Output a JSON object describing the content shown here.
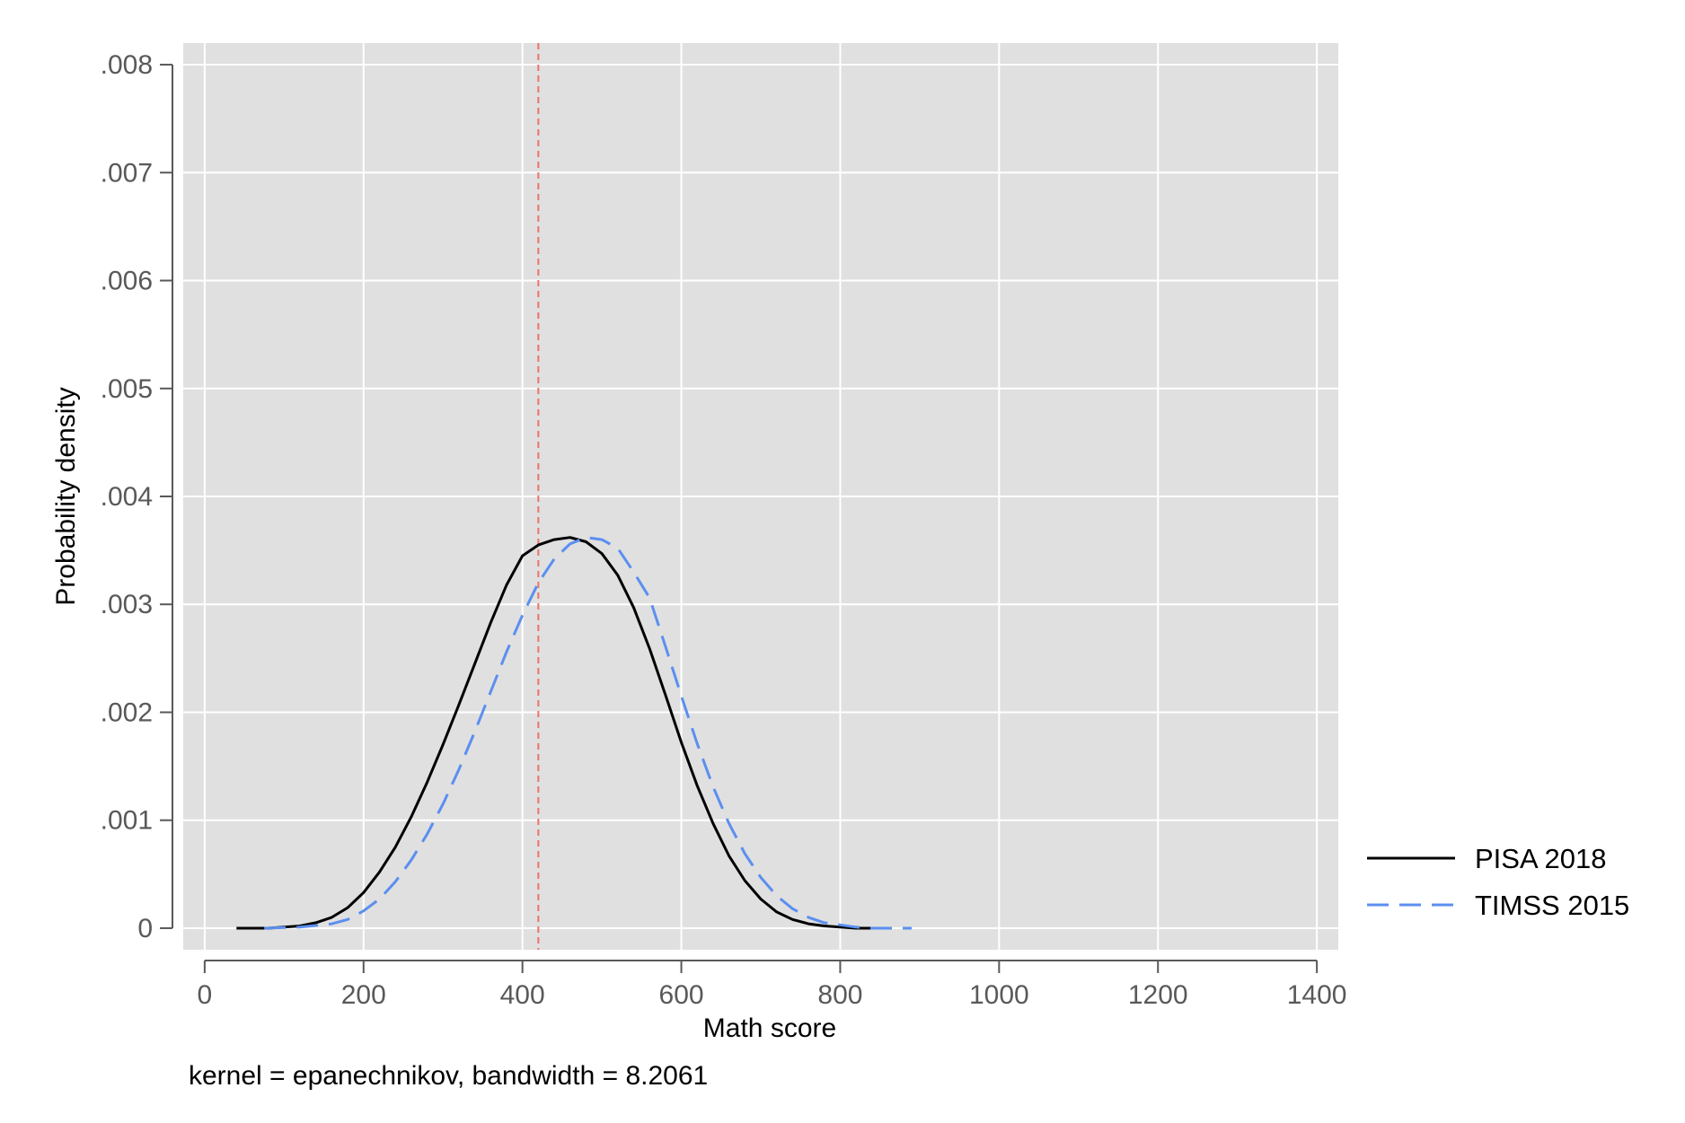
{
  "chart_data": {
    "type": "line",
    "title": "",
    "xlabel": "Math score",
    "ylabel": "Probability density",
    "note": "kernel = epanechnikov, bandwidth = 8.2061",
    "xlim": [
      -27,
      1427
    ],
    "ylim": [
      -0.0002,
      0.0082
    ],
    "x_ticks": [
      0,
      200,
      400,
      600,
      800,
      1000,
      1200,
      1400
    ],
    "x_tick_labels": [
      "0",
      "200",
      "400",
      "600",
      "800",
      "1000",
      "1200",
      "1400"
    ],
    "y_ticks": [
      0,
      0.001,
      0.002,
      0.003,
      0.004,
      0.005,
      0.006,
      0.007,
      0.008
    ],
    "y_tick_labels": [
      "0",
      ".001",
      ".002",
      ".003",
      ".004",
      ".005",
      ".006",
      ".007",
      ".008"
    ],
    "grid": true,
    "legend_position": "right",
    "reference_line": {
      "x": 420,
      "color": "#f07167",
      "style": "dashed"
    },
    "series": [
      {
        "name": "PISA 2018",
        "color": "#000000",
        "style": "solid",
        "x": [
          40,
          80,
          120,
          140,
          160,
          180,
          200,
          220,
          240,
          260,
          280,
          300,
          320,
          340,
          360,
          380,
          400,
          420,
          440,
          460,
          480,
          500,
          520,
          540,
          560,
          580,
          600,
          620,
          640,
          660,
          680,
          700,
          720,
          740,
          760,
          780,
          800,
          820,
          840,
          860
        ],
        "values": [
          0.0,
          0.0,
          2e-05,
          5e-05,
          0.0001,
          0.00019,
          0.00033,
          0.00052,
          0.00075,
          0.00103,
          0.00135,
          0.0017,
          0.00207,
          0.00245,
          0.00283,
          0.00318,
          0.00345,
          0.00355,
          0.0036,
          0.00362,
          0.00358,
          0.00347,
          0.00327,
          0.00297,
          0.00259,
          0.00216,
          0.00172,
          0.00132,
          0.00097,
          0.00067,
          0.00044,
          0.00027,
          0.00015,
          8e-05,
          4e-05,
          2e-05,
          1e-05,
          0.0,
          0.0,
          0.0
        ]
      },
      {
        "name": "TIMSS 2015",
        "color": "#5b8ff0",
        "style": "dashed",
        "x": [
          75,
          120,
          160,
          180,
          200,
          220,
          240,
          260,
          280,
          300,
          320,
          340,
          360,
          380,
          400,
          420,
          440,
          460,
          480,
          500,
          520,
          540,
          560,
          580,
          600,
          620,
          640,
          660,
          680,
          700,
          720,
          740,
          760,
          780,
          800,
          820,
          840,
          860,
          890
        ],
        "values": [
          0.0,
          1e-05,
          4e-05,
          8e-05,
          0.00016,
          0.00027,
          0.00043,
          0.00063,
          0.00087,
          0.00115,
          0.00147,
          0.00182,
          0.00219,
          0.00256,
          0.0029,
          0.0032,
          0.00342,
          0.00356,
          0.00362,
          0.0036,
          0.00352,
          0.0033,
          0.00306,
          0.00261,
          0.00215,
          0.00171,
          0.00131,
          0.00097,
          0.00069,
          0.00047,
          0.0003,
          0.00018,
          0.0001,
          5e-05,
          3e-05,
          1e-05,
          0.0,
          0.0,
          0.0
        ]
      }
    ]
  }
}
